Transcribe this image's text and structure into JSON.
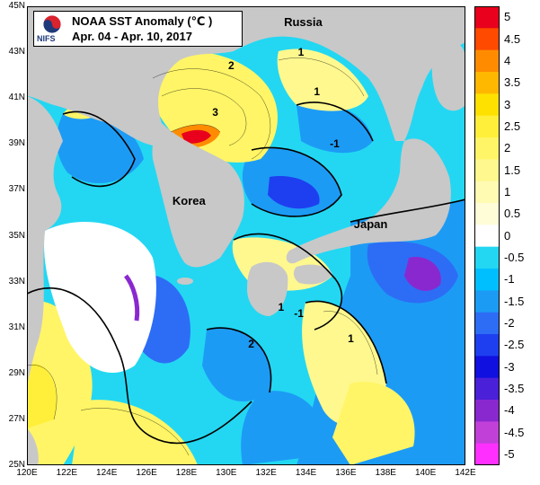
{
  "title": {
    "line1": "NOAA SST Anomaly (℃ )",
    "line2": "Apr. 04 - Apr. 10, 2017",
    "logo_text": "NIFS",
    "logo_icon": "taegeuk-logo-icon"
  },
  "map_labels": [
    {
      "name": "russia",
      "text": "Russia",
      "lon": 133.8,
      "lat": 44.3
    },
    {
      "name": "korea",
      "text": "Korea",
      "lon": 128.2,
      "lat": 36.5
    },
    {
      "name": "japan",
      "text": "Japan",
      "lon": 137.3,
      "lat": 35.5
    }
  ],
  "contour_labels": [
    {
      "text": "3",
      "lon": 129.3,
      "lat": 40.4
    },
    {
      "text": "2",
      "lon": 130.1,
      "lat": 42.4
    },
    {
      "text": "1",
      "lon": 133.6,
      "lat": 43.0
    },
    {
      "text": "1",
      "lon": 134.4,
      "lat": 41.3
    },
    {
      "text": "-1",
      "lon": 135.2,
      "lat": 39.0
    },
    {
      "text": "1",
      "lon": 132.6,
      "lat": 31.9
    },
    {
      "text": "-1",
      "lon": 133.4,
      "lat": 31.6
    },
    {
      "text": "2",
      "lon": 131.1,
      "lat": 30.3
    },
    {
      "text": "1",
      "lon": 136.1,
      "lat": 30.5
    }
  ],
  "axes": {
    "lat_ticks": [
      "45N",
      "43N",
      "41N",
      "39N",
      "37N",
      "35N",
      "33N",
      "31N",
      "29N",
      "27N",
      "25N"
    ],
    "lon_ticks": [
      "120E",
      "122E",
      "124E",
      "126E",
      "128E",
      "130E",
      "132E",
      "134E",
      "136E",
      "138E",
      "140E",
      "142E"
    ],
    "lon_range": [
      120,
      142
    ],
    "lat_range": [
      25,
      45
    ]
  },
  "colorbar": {
    "labels": [
      "5",
      "4.5",
      "4",
      "3.5",
      "3",
      "2.5",
      "2",
      "1.5",
      "1",
      "0.5",
      "0",
      "-0.5",
      "-1",
      "-1.5",
      "-2",
      "-2.5",
      "-3",
      "-3.5",
      "-4",
      "-4.5",
      "-5"
    ],
    "colors": [
      "#e8001c",
      "#ff4a00",
      "#ff8c00",
      "#ffb800",
      "#ffe100",
      "#ffef3a",
      "#fff566",
      "#fff88e",
      "#fffbb3",
      "#fffdd8",
      "#ffffff",
      "#23d7f2",
      "#00bfff",
      "#1c9bf5",
      "#2d6df5",
      "#1e3ff0",
      "#1010e0",
      "#4a20d8",
      "#8a28d0",
      "#c040d8",
      "#ff30ff"
    ]
  },
  "legend_colors": {
    "land": "#c8c8c8",
    "no_data": "#ffffff",
    "contour": "#000000"
  }
}
